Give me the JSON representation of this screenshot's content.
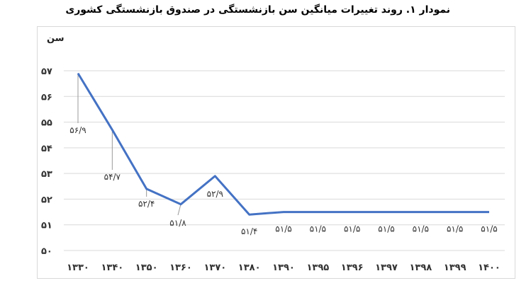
{
  "chart_data": {
    "type": "line",
    "title": "نمودار ۱. روند تغییرات میانگین سن بازنشستگی در صندوق بازنشستگی کشوری",
    "ylabel": "سن",
    "xlabel": "",
    "ylim": [
      50,
      57
    ],
    "y_ticks": [
      "۵۰",
      "۵۱",
      "۵۲",
      "۵۳",
      "۵۴",
      "۵۵",
      "۵۶",
      "۵۷"
    ],
    "categories": [
      "۱۳۳۰",
      "۱۳۴۰",
      "۱۳۵۰",
      "۱۳۶۰",
      "۱۳۷۰",
      "۱۳۸۰",
      "۱۳۹۰",
      "۱۳۹۵",
      "۱۳۹۶",
      "۱۳۹۷",
      "۱۳۹۸",
      "۱۳۹۹",
      "۱۴۰۰"
    ],
    "values": [
      56.9,
      54.7,
      52.4,
      51.8,
      52.9,
      51.4,
      51.5,
      51.5,
      51.5,
      51.5,
      51.5,
      51.5,
      51.5
    ],
    "data_labels": [
      "۵۶/۹",
      "۵۴/۷",
      "۵۲/۴",
      "۵۱/۸",
      "۵۲/۹",
      "۵۱/۴",
      "۵۱/۵",
      "۵۱/۵",
      "۵۱/۵",
      "۵۱/۵",
      "۵۱/۵",
      "۵۱/۵",
      "۵۱/۵"
    ],
    "series_color": "#4472c4",
    "grid": true,
    "legend": "none"
  }
}
